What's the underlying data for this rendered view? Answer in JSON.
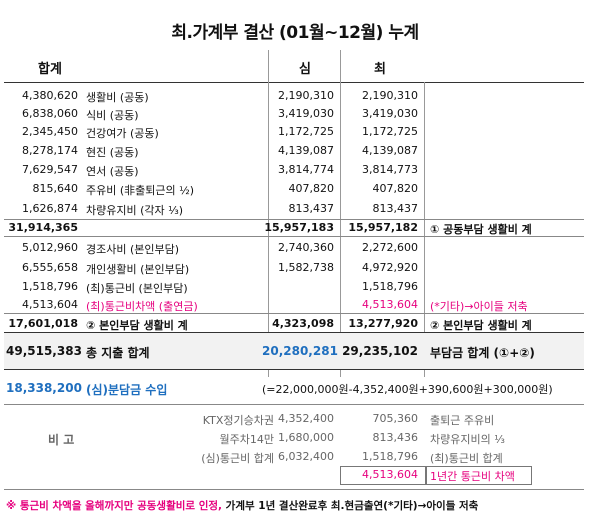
{
  "title": "최.가계부 결산 (01월~12월) 누계",
  "headers": {
    "total": "합계",
    "shim": "심",
    "choi": "최"
  },
  "rows": [
    {
      "total": "4,380,620",
      "label": "생활비 (공동)",
      "shim": "2,190,310",
      "choi": "2,190,310",
      "note": ""
    },
    {
      "total": "6,838,060",
      "label": "식비 (공동)",
      "shim": "3,419,030",
      "choi": "3,419,030",
      "note": ""
    },
    {
      "total": "2,345,450",
      "label": "건강여가 (공동)",
      "shim": "1,172,725",
      "choi": "1,172,725",
      "note": ""
    },
    {
      "total": "8,278,174",
      "label": "현진 (공동)",
      "shim": "4,139,087",
      "choi": "4,139,087",
      "note": ""
    },
    {
      "total": "7,629,547",
      "label": "연서 (공동)",
      "shim": "3,814,774",
      "choi": "3,814,773",
      "note": ""
    },
    {
      "total": "815,640",
      "label": "주유비 (非출퇴근의 ½)",
      "shim": "407,820",
      "choi": "407,820",
      "note": ""
    },
    {
      "total": "1,626,874",
      "label": "차량유지비 (각자 ⅓)",
      "shim": "813,437",
      "choi": "813,437",
      "note": ""
    },
    {
      "total": "31,914,365",
      "label": "",
      "shim": "15,957,183",
      "choi": "15,957,182",
      "note": "① 공동부담 생활비 계"
    },
    {
      "total": "5,012,960",
      "label": "경조사비 (본인부담)",
      "shim": "2,740,360",
      "choi": "2,272,600",
      "note": ""
    },
    {
      "total": "6,555,658",
      "label": "개인생활비 (본인부담)",
      "shim": "1,582,738",
      "choi": "4,972,920",
      "note": ""
    },
    {
      "total": "1,518,796",
      "label": "(최)통근비 (본인부담)",
      "shim": "",
      "choi": "1,518,796",
      "note": ""
    },
    {
      "total": "4,513,604",
      "label": "(최)통근비차액 (출연금)",
      "shim": "",
      "choi": "4,513,604",
      "note": "(*기타)→아이들 저축"
    },
    {
      "total": "17,601,018",
      "label": "② 본인부담 생활비 계",
      "shim": "4,323,098",
      "choi": "13,277,920",
      "note": "② 본인부담 생활비 계"
    }
  ],
  "grand": {
    "total": "49,515,383",
    "label": "총 지출 합계",
    "shim": "20,280,281",
    "choi": "29,235,102",
    "note": "부담금 합계 (①+②)"
  },
  "share": {
    "total": "18,338,200",
    "label": "(심)분담금 수입",
    "formula": "(=22,000,000원-4,352,400원+390,600원+300,000원)"
  },
  "remarks": {
    "label": "비 고",
    "rows": [
      {
        "name": "KTX정기승차권",
        "shim": "4,352,400",
        "choi": "705,360",
        "note": "출퇴근 주유비"
      },
      {
        "name": "월주차14만",
        "shim": "1,680,000",
        "choi": "813,436",
        "note": "차량유지비의 ⅓"
      },
      {
        "name": "(심)통근비 합계",
        "shim": "6,032,400",
        "choi": "1,518,796",
        "note": "(최)통근비 합계"
      },
      {
        "name": "",
        "shim": "",
        "choi": "4,513,604",
        "note": "1년간 통근비 차액"
      }
    ]
  },
  "footnote": {
    "part1": "※ 통근비 차액을 올해까지만 공동생활비로 인정, ",
    "part2": "가계부 1년 결산완료후 최.현금출연(*기타)→아이들 저축"
  },
  "colors": {
    "pink": "#e6007e",
    "blue": "#1f6fbf",
    "band": "#f2f2f2"
  }
}
